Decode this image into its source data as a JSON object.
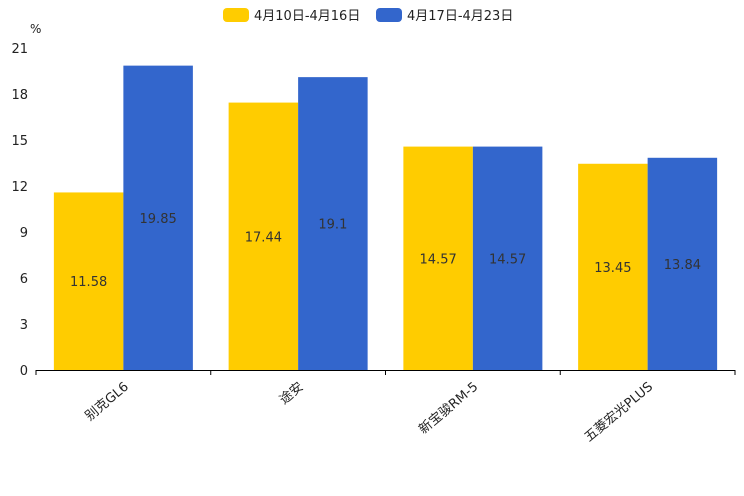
{
  "chart_data": {
    "type": "bar",
    "title": "",
    "xlabel": "",
    "ylabel": "%",
    "ylim": [
      0,
      21
    ],
    "yticks": [
      0,
      3,
      6,
      9,
      12,
      15,
      18,
      21
    ],
    "grid": false,
    "legend_position": "top-center",
    "categories": [
      "别克GL6",
      "途安",
      "新宝骏RM-5",
      "五菱宏光PLUS"
    ],
    "series": [
      {
        "name": "4月10日-4月16日",
        "color": "#FFCC00",
        "values": [
          11.58,
          17.44,
          14.57,
          13.45
        ]
      },
      {
        "name": "4月17日-4月23日",
        "color": "#3366CC",
        "values": [
          19.85,
          19.1,
          14.57,
          13.84
        ]
      }
    ]
  }
}
